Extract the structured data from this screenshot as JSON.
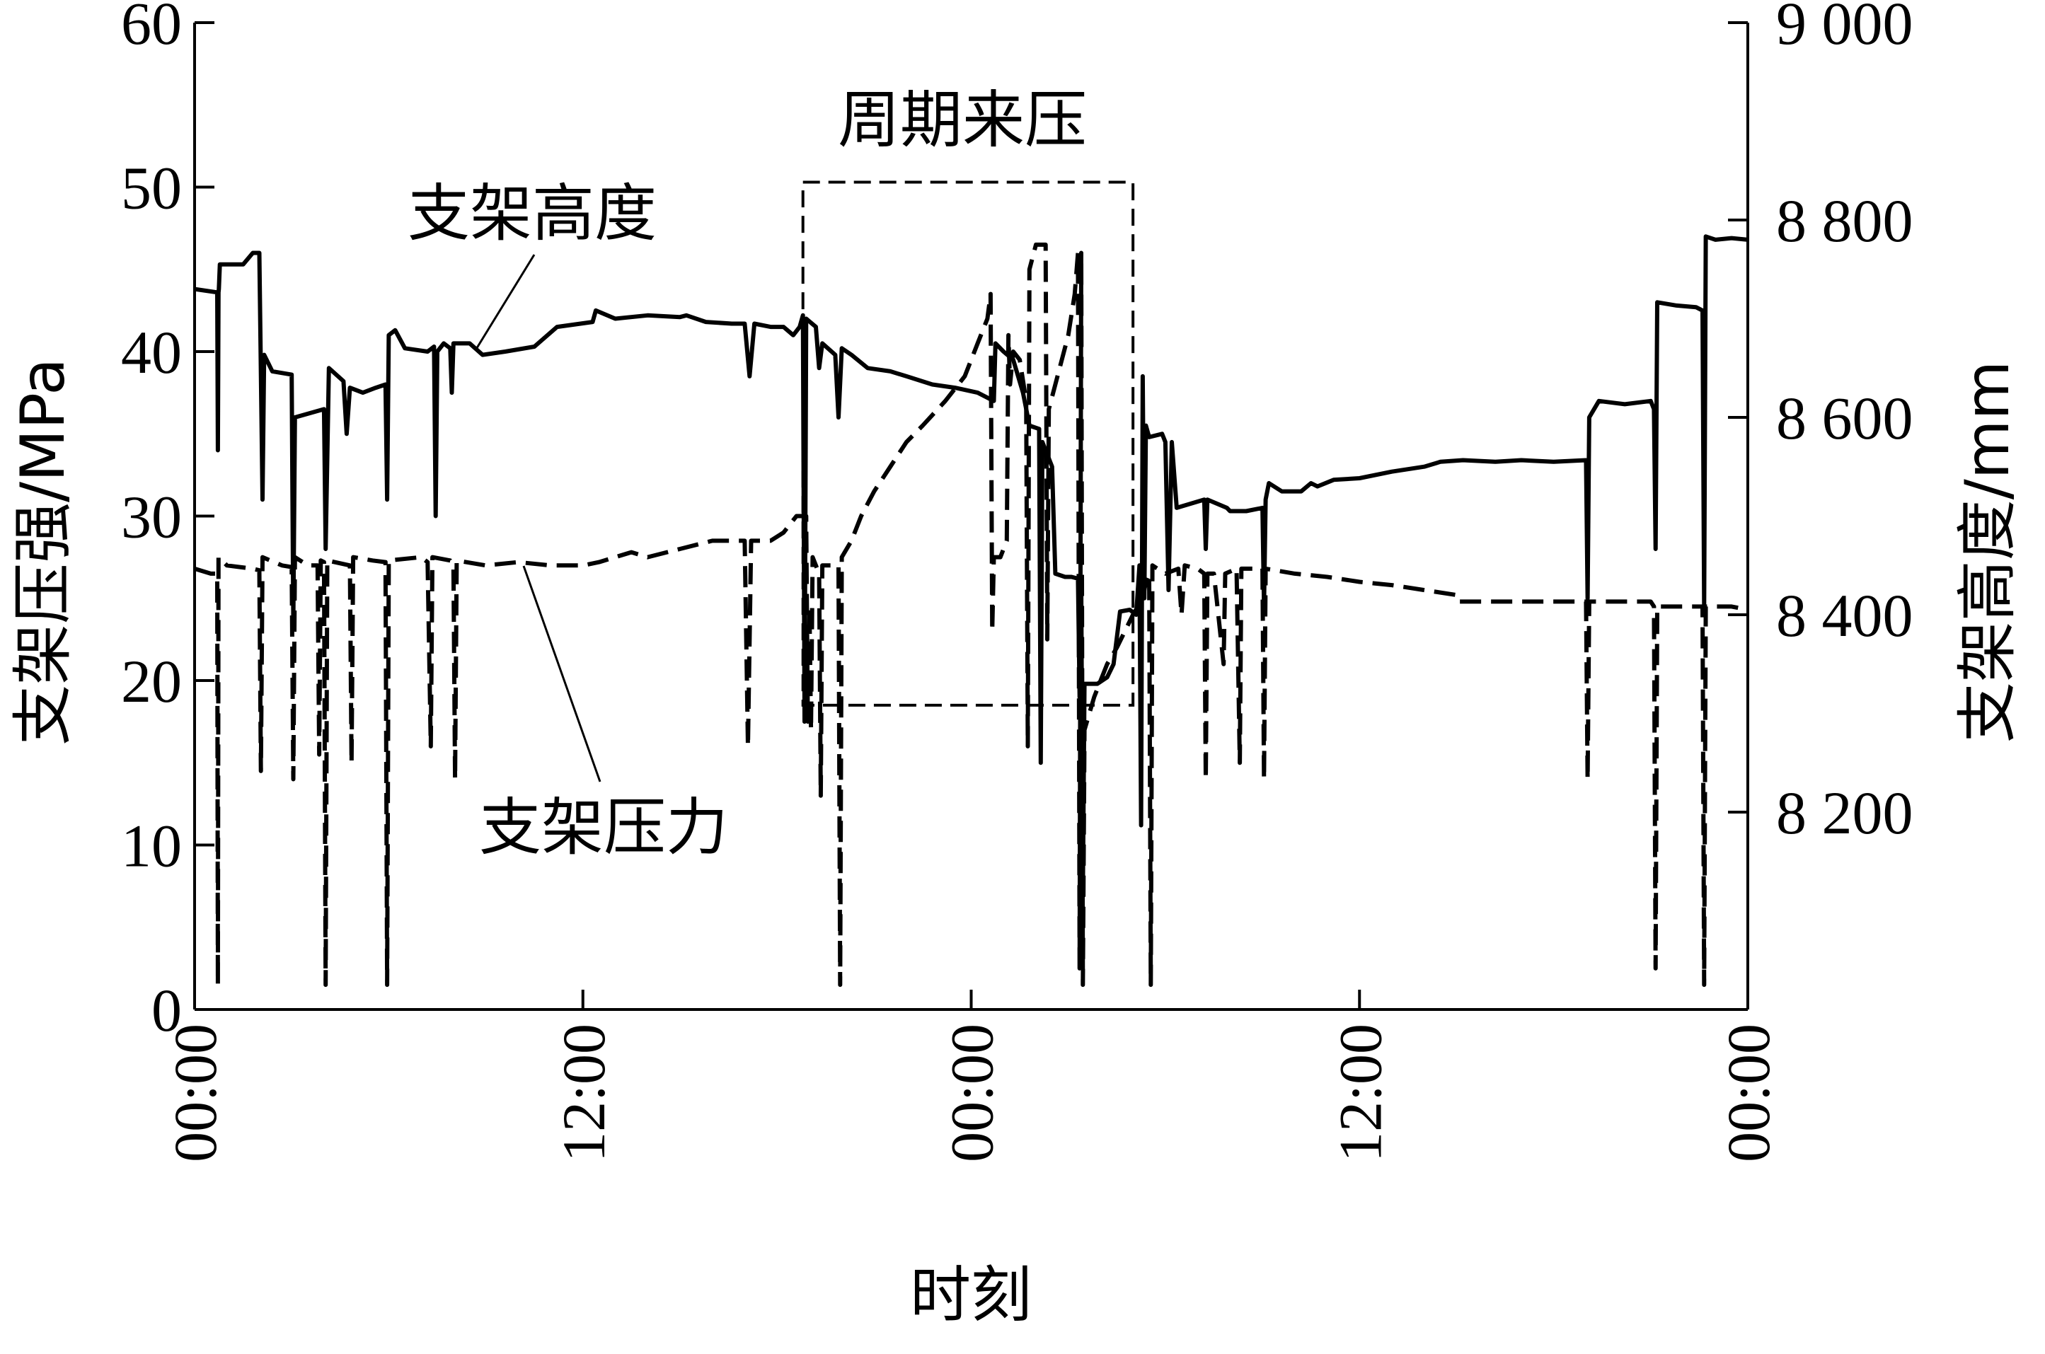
{
  "chart_data": {
    "type": "line",
    "xlabel": "时刻",
    "ylabel_left": "支架压强/MPa",
    "ylabel_right": "支架高度/mm",
    "x_range": [
      0,
      48
    ],
    "x_ticks": [
      {
        "x": 0,
        "label": "00:00"
      },
      {
        "x": 12,
        "label": "12:00"
      },
      {
        "x": 24,
        "label": "00:00"
      },
      {
        "x": 36,
        "label": "12:00"
      },
      {
        "x": 48,
        "label": "00:00"
      }
    ],
    "ylim_left": [
      0,
      60
    ],
    "y_ticks_left": [
      {
        "v": 0,
        "label": "0"
      },
      {
        "v": 10,
        "label": "10"
      },
      {
        "v": 20,
        "label": "20"
      },
      {
        "v": 30,
        "label": "30"
      },
      {
        "v": 40,
        "label": "40"
      },
      {
        "v": 50,
        "label": "50"
      },
      {
        "v": 60,
        "label": "60"
      }
    ],
    "ylim_right": [
      8000,
      9000
    ],
    "y_ticks_right": [
      {
        "v": 8200,
        "label": "8 200"
      },
      {
        "v": 8400,
        "label": "8 400"
      },
      {
        "v": 8600,
        "label": "8 600"
      },
      {
        "v": 8800,
        "label": "8 800"
      },
      {
        "v": 9000,
        "label": "9 000"
      }
    ],
    "grid": false,
    "series": [
      {
        "name": "支架高度",
        "axis": "left",
        "style": "solid",
        "color": "#000000",
        "points": [
          [
            0.0,
            43.8
          ],
          [
            0.7,
            43.6
          ],
          [
            0.72,
            34.0
          ],
          [
            0.74,
            43.6
          ],
          [
            0.75,
            43.8
          ],
          [
            0.78,
            45.3
          ],
          [
            1.5,
            45.3
          ],
          [
            1.8,
            46.0
          ],
          [
            2.0,
            46.0
          ],
          [
            2.1,
            31.0
          ],
          [
            2.15,
            39.8
          ],
          [
            2.4,
            38.8
          ],
          [
            3.0,
            38.6
          ],
          [
            3.05,
            23.5
          ],
          [
            3.1,
            36.0
          ],
          [
            4.0,
            36.5
          ],
          [
            4.05,
            28.0
          ],
          [
            4.15,
            39.0
          ],
          [
            4.6,
            38.2
          ],
          [
            4.7,
            35.0
          ],
          [
            4.8,
            37.8
          ],
          [
            5.2,
            37.5
          ],
          [
            5.6,
            37.8
          ],
          [
            5.9,
            38.0
          ],
          [
            5.95,
            31.0
          ],
          [
            6.0,
            41.0
          ],
          [
            6.2,
            41.3
          ],
          [
            6.5,
            40.2
          ],
          [
            7.2,
            40.0
          ],
          [
            7.4,
            40.3
          ],
          [
            7.45,
            30.0
          ],
          [
            7.5,
            40.0
          ],
          [
            7.7,
            40.5
          ],
          [
            7.9,
            40.2
          ],
          [
            7.95,
            37.5
          ],
          [
            8.0,
            40.5
          ],
          [
            8.5,
            40.5
          ],
          [
            8.9,
            39.8
          ],
          [
            9.6,
            40.0
          ],
          [
            10.5,
            40.3
          ],
          [
            11.2,
            41.5
          ],
          [
            12.3,
            41.8
          ],
          [
            12.4,
            42.5
          ],
          [
            13.0,
            42.0
          ],
          [
            14.0,
            42.2
          ],
          [
            15.0,
            42.1
          ],
          [
            15.2,
            42.2
          ],
          [
            15.8,
            41.8
          ],
          [
            16.6,
            41.7
          ],
          [
            17.0,
            41.7
          ],
          [
            17.15,
            38.5
          ],
          [
            17.3,
            41.7
          ],
          [
            17.8,
            41.5
          ],
          [
            18.2,
            41.5
          ],
          [
            18.5,
            41.0
          ],
          [
            18.7,
            41.5
          ],
          [
            18.8,
            42.2
          ],
          [
            18.85,
            17.5
          ],
          [
            18.9,
            42.0
          ],
          [
            19.2,
            41.5
          ],
          [
            19.3,
            39.0
          ],
          [
            19.4,
            40.5
          ],
          [
            19.8,
            39.8
          ],
          [
            19.9,
            36.0
          ],
          [
            20.0,
            40.2
          ],
          [
            20.3,
            39.8
          ],
          [
            20.8,
            39.0
          ],
          [
            21.5,
            38.8
          ],
          [
            22.0,
            38.5
          ],
          [
            22.8,
            38.0
          ],
          [
            23.5,
            37.8
          ],
          [
            24.2,
            37.5
          ],
          [
            24.7,
            37.0
          ],
          [
            24.75,
            40.5
          ],
          [
            25.0,
            40.0
          ],
          [
            25.3,
            39.5
          ],
          [
            25.6,
            37.5
          ],
          [
            25.8,
            35.5
          ],
          [
            26.1,
            35.3
          ],
          [
            26.15,
            15.0
          ],
          [
            26.2,
            34.5
          ],
          [
            26.5,
            33.0
          ],
          [
            26.6,
            26.5
          ],
          [
            26.9,
            26.3
          ],
          [
            27.1,
            26.3
          ],
          [
            27.3,
            26.2
          ],
          [
            27.35,
            19.0
          ],
          [
            27.4,
            26.0
          ],
          [
            27.45,
            7.0
          ],
          [
            27.5,
            19.8
          ],
          [
            27.9,
            19.8
          ],
          [
            28.2,
            20.2
          ],
          [
            28.4,
            21.0
          ],
          [
            28.6,
            24.2
          ],
          [
            28.9,
            24.3
          ],
          [
            29.1,
            24.0
          ],
          [
            29.2,
            27.0
          ],
          [
            29.25,
            11.2
          ],
          [
            29.3,
            38.5
          ],
          [
            29.35,
            25.0
          ],
          [
            29.4,
            35.5
          ],
          [
            29.5,
            34.8
          ],
          [
            29.9,
            35.0
          ],
          [
            30.0,
            34.5
          ],
          [
            30.1,
            25.5
          ],
          [
            30.2,
            34.5
          ],
          [
            30.35,
            30.5
          ],
          [
            31.2,
            31.0
          ],
          [
            31.25,
            28.0
          ],
          [
            31.3,
            31.0
          ],
          [
            31.9,
            30.5
          ],
          [
            32.0,
            30.3
          ],
          [
            32.5,
            30.3
          ],
          [
            33.0,
            30.5
          ],
          [
            33.05,
            24.5
          ],
          [
            33.1,
            31.0
          ],
          [
            33.2,
            32.0
          ],
          [
            33.6,
            31.5
          ],
          [
            34.2,
            31.5
          ],
          [
            34.5,
            32.0
          ],
          [
            34.7,
            31.8
          ],
          [
            35.2,
            32.2
          ],
          [
            36.0,
            32.3
          ],
          [
            37.0,
            32.7
          ],
          [
            38.0,
            33.0
          ],
          [
            38.5,
            33.3
          ],
          [
            39.2,
            33.4
          ],
          [
            40.2,
            33.3
          ],
          [
            41.0,
            33.4
          ],
          [
            42.0,
            33.3
          ],
          [
            43.0,
            33.4
          ],
          [
            43.05,
            25.0
          ],
          [
            43.1,
            36.0
          ],
          [
            43.4,
            37.0
          ],
          [
            44.2,
            36.8
          ],
          [
            45.0,
            37.0
          ],
          [
            45.1,
            36.5
          ],
          [
            45.15,
            28.0
          ],
          [
            45.2,
            43.0
          ],
          [
            45.8,
            42.8
          ],
          [
            46.4,
            42.7
          ],
          [
            46.6,
            42.5
          ],
          [
            46.65,
            24.5
          ],
          [
            46.7,
            47.0
          ],
          [
            47.0,
            46.8
          ],
          [
            47.5,
            46.9
          ],
          [
            48.0,
            46.8
          ]
        ]
      },
      {
        "name": "支架压力",
        "axis": "left",
        "style": "dashed",
        "color": "#000000",
        "points": [
          [
            0.0,
            26.8
          ],
          [
            0.5,
            26.5
          ],
          [
            0.7,
            26.5
          ],
          [
            0.72,
            1.5
          ],
          [
            0.74,
            27.5
          ],
          [
            1.0,
            27.0
          ],
          [
            1.8,
            26.8
          ],
          [
            2.0,
            26.7
          ],
          [
            2.05,
            14.5
          ],
          [
            2.1,
            27.5
          ],
          [
            2.7,
            27.0
          ],
          [
            3.0,
            26.9
          ],
          [
            3.05,
            14.0
          ],
          [
            3.1,
            27.5
          ],
          [
            3.5,
            27.0
          ],
          [
            3.8,
            27.0
          ],
          [
            3.85,
            15.5
          ],
          [
            3.9,
            27.3
          ],
          [
            4.0,
            27.2
          ],
          [
            4.05,
            1.5
          ],
          [
            4.1,
            27.3
          ],
          [
            4.8,
            27.0
          ],
          [
            4.85,
            15.0
          ],
          [
            4.9,
            27.5
          ],
          [
            5.5,
            27.3
          ],
          [
            5.9,
            27.2
          ],
          [
            5.95,
            1.5
          ],
          [
            6.0,
            27.3
          ],
          [
            7.0,
            27.5
          ],
          [
            7.2,
            27.2
          ],
          [
            7.3,
            16.0
          ],
          [
            7.35,
            27.5
          ],
          [
            7.9,
            27.3
          ],
          [
            8.0,
            27.0
          ],
          [
            8.05,
            14.0
          ],
          [
            8.1,
            27.3
          ],
          [
            9.0,
            27.0
          ],
          [
            10.0,
            27.2
          ],
          [
            11.0,
            27.0
          ],
          [
            12.0,
            27.0
          ],
          [
            12.5,
            27.2
          ],
          [
            13.5,
            27.8
          ],
          [
            14.0,
            27.5
          ],
          [
            15.0,
            28.0
          ],
          [
            16.0,
            28.5
          ],
          [
            17.0,
            28.5
          ],
          [
            17.1,
            16.0
          ],
          [
            17.2,
            28.5
          ],
          [
            17.8,
            28.5
          ],
          [
            18.2,
            29.0
          ],
          [
            18.6,
            30.0
          ],
          [
            18.9,
            30.0
          ],
          [
            18.95,
            17.5
          ],
          [
            19.0,
            24.5
          ],
          [
            19.05,
            17.0
          ],
          [
            19.1,
            27.5
          ],
          [
            19.3,
            26.5
          ],
          [
            19.35,
            13.0
          ],
          [
            19.4,
            27.0
          ],
          [
            19.9,
            27.0
          ],
          [
            19.95,
            1.5
          ],
          [
            20.0,
            27.5
          ],
          [
            20.3,
            28.5
          ],
          [
            20.6,
            30.0
          ],
          [
            21.0,
            31.5
          ],
          [
            21.5,
            33.0
          ],
          [
            22.0,
            34.5
          ],
          [
            22.5,
            35.5
          ],
          [
            23.2,
            37.0
          ],
          [
            23.8,
            38.5
          ],
          [
            24.2,
            40.5
          ],
          [
            24.5,
            42.0
          ],
          [
            24.6,
            43.5
          ],
          [
            24.65,
            23.0
          ],
          [
            24.7,
            27.5
          ],
          [
            24.9,
            27.5
          ],
          [
            25.1,
            28.5
          ],
          [
            25.15,
            41.0
          ],
          [
            25.2,
            38.0
          ],
          [
            25.3,
            40.0
          ],
          [
            25.5,
            39.5
          ],
          [
            25.7,
            37.0
          ],
          [
            25.75,
            16.0
          ],
          [
            25.8,
            45.0
          ],
          [
            26.0,
            46.5
          ],
          [
            26.3,
            46.5
          ],
          [
            26.35,
            22.5
          ],
          [
            26.4,
            36.5
          ],
          [
            26.6,
            38.0
          ],
          [
            27.0,
            41.0
          ],
          [
            27.2,
            43.5
          ],
          [
            27.3,
            46.0
          ],
          [
            27.35,
            2.5
          ],
          [
            27.4,
            46.0
          ],
          [
            27.45,
            1.5
          ],
          [
            27.5,
            17.0
          ],
          [
            27.8,
            19.0
          ],
          [
            28.0,
            20.0
          ],
          [
            28.2,
            21.0
          ],
          [
            28.5,
            22.0
          ],
          [
            29.0,
            24.0
          ],
          [
            29.3,
            25.0
          ],
          [
            29.4,
            26.0
          ],
          [
            29.5,
            26.5
          ],
          [
            29.55,
            1.5
          ],
          [
            29.6,
            27.0
          ],
          [
            30.0,
            26.5
          ],
          [
            30.4,
            26.8
          ],
          [
            30.5,
            24.0
          ],
          [
            30.6,
            27.0
          ],
          [
            31.0,
            26.8
          ],
          [
            31.2,
            26.5
          ],
          [
            31.25,
            14.0
          ],
          [
            31.3,
            26.5
          ],
          [
            31.5,
            26.5
          ],
          [
            31.8,
            21.0
          ],
          [
            31.85,
            26.5
          ],
          [
            32.2,
            26.8
          ],
          [
            32.3,
            15.0
          ],
          [
            32.35,
            26.8
          ],
          [
            33.0,
            26.8
          ],
          [
            33.05,
            14.0
          ],
          [
            33.1,
            26.8
          ],
          [
            34.0,
            26.5
          ],
          [
            35.0,
            26.3
          ],
          [
            36.0,
            26.0
          ],
          [
            37.0,
            25.8
          ],
          [
            38.0,
            25.5
          ],
          [
            39.0,
            25.2
          ],
          [
            39.05,
            24.8
          ],
          [
            40.0,
            24.8
          ],
          [
            41.0,
            24.8
          ],
          [
            42.0,
            24.8
          ],
          [
            43.0,
            24.8
          ],
          [
            43.05,
            14.0
          ],
          [
            43.1,
            24.8
          ],
          [
            44.0,
            24.8
          ],
          [
            45.0,
            24.8
          ],
          [
            45.1,
            24.5
          ],
          [
            45.15,
            2.5
          ],
          [
            45.2,
            24.5
          ],
          [
            46.0,
            24.5
          ],
          [
            46.6,
            24.5
          ],
          [
            46.65,
            1.5
          ],
          [
            46.7,
            24.5
          ],
          [
            47.0,
            24.5
          ],
          [
            47.5,
            24.5
          ],
          [
            48.0,
            24.3
          ]
        ]
      }
    ],
    "annotations": [
      {
        "text": "支架高度",
        "type": "label"
      },
      {
        "text": "支架压力",
        "type": "label"
      },
      {
        "text": "周期来压",
        "type": "box-label"
      }
    ],
    "highlight_box": {
      "x_start": 18.8,
      "x_end": 29.0,
      "y_bottom": 18.5,
      "y_top": 50.3
    }
  }
}
